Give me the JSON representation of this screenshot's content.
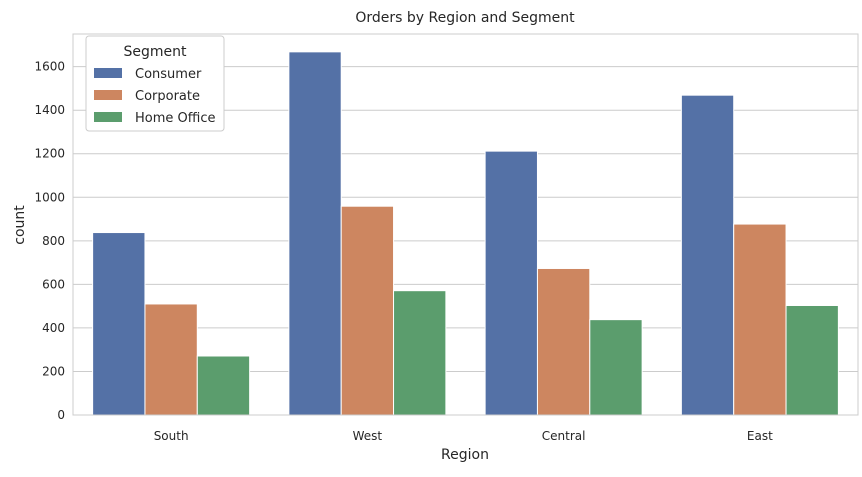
{
  "chart_data": {
    "type": "bar",
    "title": "Orders by Region and Segment",
    "xlabel": "Region",
    "ylabel": "count",
    "categories": [
      "South",
      "West",
      "Central",
      "East"
    ],
    "series": [
      {
        "name": "Consumer",
        "values": [
          838,
          1668,
          1212,
          1469
        ],
        "color": "#5471a6"
      },
      {
        "name": "Corporate",
        "values": [
          510,
          959,
          673,
          877
        ],
        "color": "#cd8660"
      },
      {
        "name": "Home Office",
        "values": [
          271,
          571,
          438,
          503
        ],
        "color": "#5b9d6d"
      }
    ],
    "ylim": [
      0,
      1750
    ],
    "yticks": [
      0,
      200,
      400,
      600,
      800,
      1000,
      1200,
      1400,
      1600
    ],
    "grid": "horizontal",
    "legend": {
      "title": "Segment",
      "placement": "top-left"
    }
  }
}
